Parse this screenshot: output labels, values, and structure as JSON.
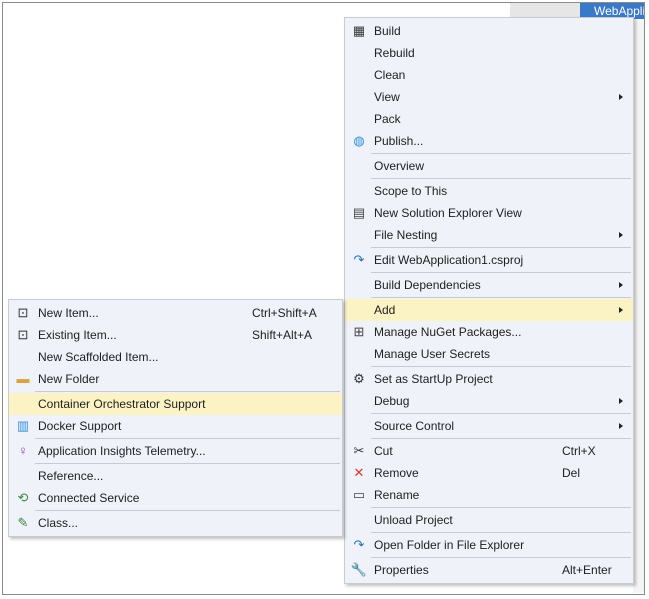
{
  "background_panel": {
    "title": "WebApplic"
  },
  "main_menu": {
    "items": [
      {
        "label": "Build",
        "icon": "build-icon"
      },
      {
        "label": "Rebuild"
      },
      {
        "label": "Clean"
      },
      {
        "label": "View",
        "submenu": true
      },
      {
        "label": "Pack"
      },
      {
        "label": "Publish...",
        "icon": "globe-publish-icon"
      },
      {
        "separator": true
      },
      {
        "label": "Overview"
      },
      {
        "separator": true
      },
      {
        "label": "Scope to This"
      },
      {
        "label": "New Solution Explorer View",
        "icon": "new-window-icon"
      },
      {
        "label": "File Nesting",
        "submenu": true
      },
      {
        "separator": true
      },
      {
        "label": "Edit WebApplication1.csproj",
        "icon": "redo-arrow-icon"
      },
      {
        "separator": true
      },
      {
        "label": "Build Dependencies",
        "submenu": true
      },
      {
        "separator": true
      },
      {
        "label": "Add",
        "submenu": true,
        "highlighted": true
      },
      {
        "label": "Manage NuGet Packages...",
        "icon": "nuget-package-icon"
      },
      {
        "label": "Manage User Secrets"
      },
      {
        "separator": true
      },
      {
        "label": "Set as StartUp Project",
        "icon": "gear-icon"
      },
      {
        "label": "Debug",
        "submenu": true
      },
      {
        "separator": true
      },
      {
        "label": "Source Control",
        "submenu": true
      },
      {
        "separator": true
      },
      {
        "label": "Cut",
        "shortcut": "Ctrl+X",
        "icon": "scissors-icon"
      },
      {
        "label": "Remove",
        "shortcut": "Del",
        "icon": "red-x-icon"
      },
      {
        "label": "Rename",
        "icon": "rename-icon"
      },
      {
        "separator": true
      },
      {
        "label": "Unload Project"
      },
      {
        "separator": true
      },
      {
        "label": "Open Folder in File Explorer",
        "icon": "redo-arrow-icon"
      },
      {
        "separator": true
      },
      {
        "label": "Properties",
        "shortcut": "Alt+Enter",
        "icon": "wrench-icon"
      }
    ]
  },
  "add_menu": {
    "items": [
      {
        "label": "New Item...",
        "shortcut": "Ctrl+Shift+A",
        "icon": "new-item-icon"
      },
      {
        "label": "Existing Item...",
        "shortcut": "Shift+Alt+A",
        "icon": "existing-item-icon"
      },
      {
        "label": "New Scaffolded Item..."
      },
      {
        "label": "New Folder",
        "icon": "new-folder-icon"
      },
      {
        "separator": true
      },
      {
        "label": "Container Orchestrator Support",
        "highlighted": true
      },
      {
        "label": "Docker Support",
        "icon": "docker-icon"
      },
      {
        "separator": true
      },
      {
        "label": "Application Insights Telemetry...",
        "icon": "lightbulb-icon"
      },
      {
        "separator": true
      },
      {
        "label": "Reference..."
      },
      {
        "label": "Connected Service",
        "icon": "connected-service-icon"
      },
      {
        "separator": true
      },
      {
        "label": "Class...",
        "icon": "class-icon"
      }
    ]
  },
  "colors": {
    "menu_bg": "#f0f2f9",
    "highlight": "#fcf3c4",
    "accent_blue": "#3a78c8",
    "remove_red": "#d33a2c"
  }
}
